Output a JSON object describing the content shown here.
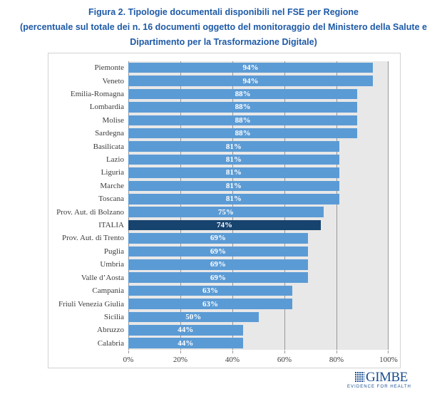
{
  "title": {
    "line1": "Figura 2. Tipologie documentali disponibili nel FSE per Regione",
    "line2": "(percentuale sul totale dei n. 16 documenti oggetto del monitoraggio del Ministero della Salute e",
    "line3": "Dipartimento per la Trasformazione Digitale)"
  },
  "chart_data": {
    "type": "bar",
    "orientation": "horizontal",
    "categories": [
      "Piemonte",
      "Veneto",
      "Emilia-Romagna",
      "Lombardia",
      "Molise",
      "Sardegna",
      "Basilicata",
      "Lazio",
      "Liguria",
      "Marche",
      "Toscana",
      "Prov. Aut. di Bolzano",
      "ITALIA",
      "Prov. Aut. di Trento",
      "Puglia",
      "Umbria",
      "Valle d’Aosta",
      "Campania",
      "Friuli Venezia Giulia",
      "Sicilia",
      "Abruzzo",
      "Calabria"
    ],
    "values": [
      94,
      94,
      88,
      88,
      88,
      88,
      81,
      81,
      81,
      81,
      81,
      75,
      74,
      69,
      69,
      69,
      69,
      63,
      63,
      50,
      44,
      44
    ],
    "value_labels": [
      "94%",
      "94%",
      "88%",
      "88%",
      "88%",
      "88%",
      "81%",
      "81%",
      "81%",
      "81%",
      "81%",
      "75%",
      "74%",
      "69%",
      "69%",
      "69%",
      "69%",
      "63%",
      "63%",
      "50%",
      "44%",
      "44%"
    ],
    "highlight_category": "ITALIA",
    "x_ticks": [
      "0%",
      "20%",
      "40%",
      "60%",
      "80%",
      "100%"
    ],
    "xlim": [
      0,
      100
    ],
    "grid": true,
    "legend": "none",
    "colors": {
      "bar": "#5b9bd5",
      "highlight": "#17436f",
      "plot_background": "#e8e8e8",
      "gridline": "#979797",
      "value_text": "#ffffff",
      "axis_text": "#3d3d3d",
      "title_text": "#1e5aa6"
    }
  },
  "logo": {
    "name": "GIMBE",
    "tagline": "EVIDENCE FOR HEALTH",
    "color": "#1b4f91"
  }
}
